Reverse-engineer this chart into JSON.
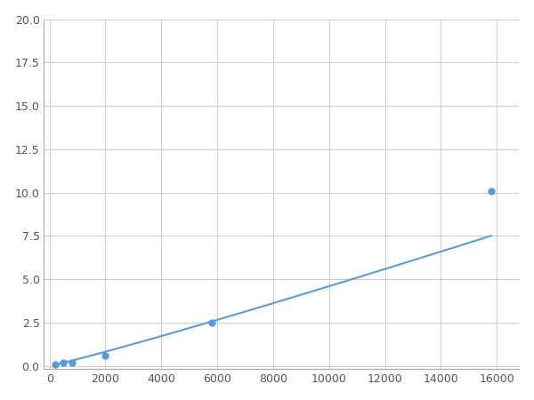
{
  "x": [
    200,
    500,
    800,
    2000,
    5800,
    15800
  ],
  "y": [
    0.1,
    0.2,
    0.2,
    0.6,
    2.5,
    10.1
  ],
  "line_color": "#5b9bd5",
  "marker_color": "#5b9bd5",
  "marker_size": 5,
  "line_width": 1.5,
  "xlim": [
    -200,
    16800
  ],
  "ylim": [
    -0.2,
    20.0
  ],
  "xticks": [
    0,
    2000,
    4000,
    6000,
    8000,
    10000,
    12000,
    14000,
    16000
  ],
  "yticks": [
    0.0,
    2.5,
    5.0,
    7.5,
    10.0,
    12.5,
    15.0,
    17.5,
    20.0
  ],
  "grid": true,
  "background_color": "#ffffff",
  "figure_bg": "#ffffff"
}
